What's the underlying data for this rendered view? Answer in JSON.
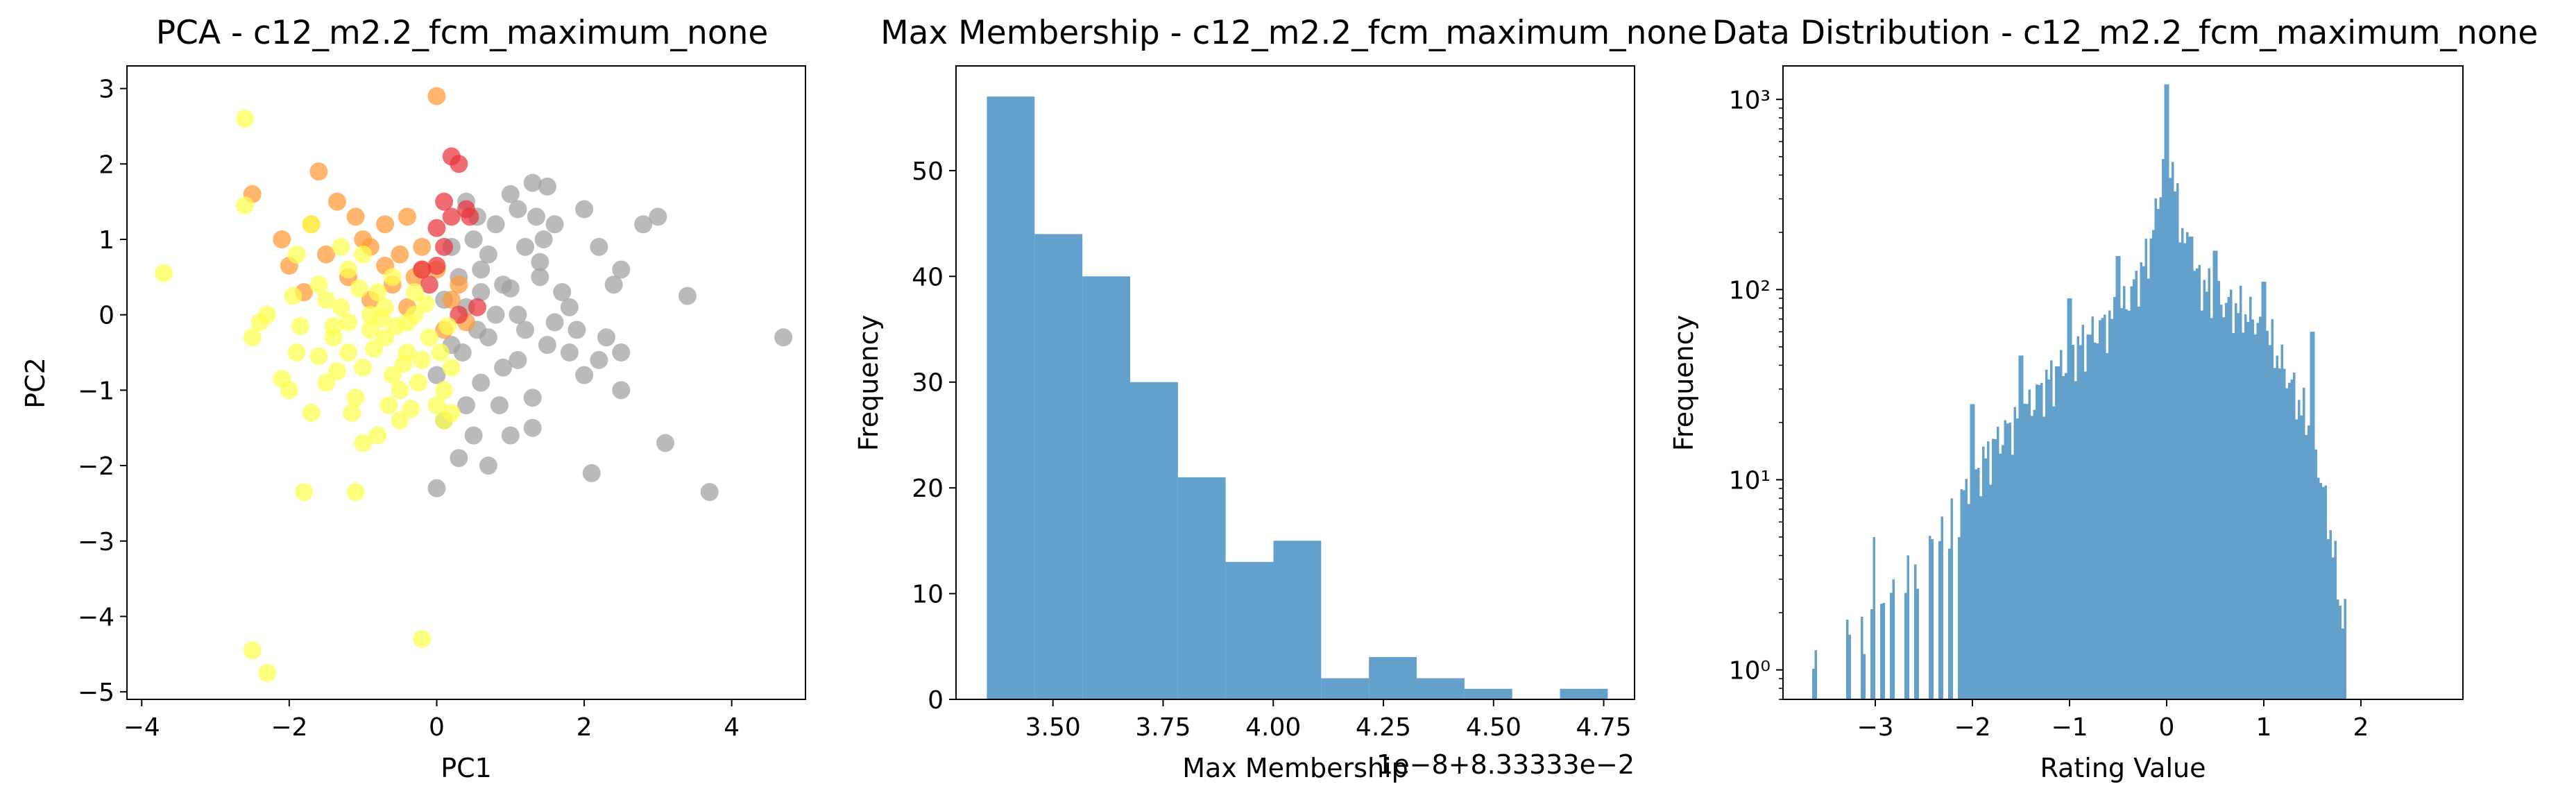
{
  "chart_data": [
    {
      "type": "scatter",
      "title": "PCA - c12_m2.2_fcm_maximum_none",
      "xlabel": "PC1",
      "ylabel": "PC2",
      "xlim": [
        -4.2,
        5.0
      ],
      "ylim": [
        -5.1,
        3.3
      ],
      "xticks": [
        -4,
        -2,
        0,
        2,
        4
      ],
      "yticks": [
        -5,
        -4,
        -3,
        -2,
        -1,
        0,
        1,
        2,
        3
      ],
      "xtick_labels": [
        "−4",
        "−2",
        "0",
        "2",
        "4"
      ],
      "ytick_labels": [
        "−5",
        "−4",
        "−3",
        "−2",
        "−1",
        "0",
        "1",
        "2",
        "3"
      ],
      "series": [
        {
          "color": "#a0a0a0",
          "points": [
            [
              0.4,
              1.5
            ],
            [
              0.55,
              1.3
            ],
            [
              0.6,
              0.6
            ],
            [
              0.7,
              0.8
            ],
            [
              0.8,
              1.2
            ],
            [
              0.9,
              0.4
            ],
            [
              1.0,
              1.6
            ],
            [
              1.1,
              1.4
            ],
            [
              1.2,
              0.9
            ],
            [
              1.3,
              1.75
            ],
            [
              1.35,
              1.3
            ],
            [
              1.4,
              0.5
            ],
            [
              1.45,
              1.0
            ],
            [
              1.5,
              1.7
            ],
            [
              1.6,
              1.2
            ],
            [
              1.7,
              0.3
            ],
            [
              1.8,
              0.1
            ],
            [
              1.9,
              -0.2
            ],
            [
              2.0,
              1.4
            ],
            [
              2.2,
              0.9
            ],
            [
              2.4,
              0.4
            ],
            [
              2.5,
              0.6
            ],
            [
              2.8,
              1.2
            ],
            [
              3.0,
              1.3
            ],
            [
              3.4,
              0.25
            ],
            [
              4.7,
              -0.3
            ],
            [
              0.0,
              -2.3
            ],
            [
              0.7,
              -2.0
            ],
            [
              1.0,
              -1.6
            ],
            [
              1.3,
              -1.1
            ],
            [
              1.5,
              -0.4
            ],
            [
              1.2,
              -0.2
            ],
            [
              0.9,
              -0.7
            ],
            [
              0.6,
              -0.9
            ],
            [
              0.4,
              -1.2
            ],
            [
              0.1,
              -1.4
            ],
            [
              0.3,
              -1.9
            ],
            [
              0.5,
              -1.6
            ],
            [
              1.3,
              -1.5
            ],
            [
              2.1,
              -2.1
            ],
            [
              3.1,
              -1.7
            ],
            [
              3.7,
              -2.35
            ],
            [
              2.5,
              -1.0
            ],
            [
              2.0,
              -0.8
            ],
            [
              2.3,
              -0.3
            ],
            [
              1.1,
              -0.6
            ],
            [
              0.8,
              0.0
            ],
            [
              0.6,
              0.3
            ],
            [
              0.3,
              0.5
            ],
            [
              0.2,
              -0.4
            ],
            [
              0.4,
              0.1
            ],
            [
              1.6,
              -0.1
            ],
            [
              1.0,
              0.35
            ],
            [
              0.7,
              -0.3
            ],
            [
              0.2,
              0.9
            ],
            [
              0.5,
              1.0
            ],
            [
              1.1,
              0.0
            ],
            [
              1.8,
              -0.5
            ],
            [
              2.5,
              -0.5
            ],
            [
              2.2,
              -0.6
            ],
            [
              0.0,
              -0.8
            ],
            [
              0.35,
              -0.5
            ],
            [
              0.85,
              -1.2
            ],
            [
              1.4,
              0.7
            ],
            [
              0.1,
              0.2
            ],
            [
              0.55,
              -0.2
            ]
          ]
        },
        {
          "color": "#ff9a33",
          "points": [
            [
              0.0,
              2.9
            ],
            [
              -2.5,
              1.6
            ],
            [
              -1.6,
              1.9
            ],
            [
              -1.35,
              1.5
            ],
            [
              -1.7,
              1.2
            ],
            [
              -1.1,
              1.3
            ],
            [
              -0.7,
              1.2
            ],
            [
              -0.4,
              1.3
            ],
            [
              -1.5,
              0.8
            ],
            [
              -0.9,
              0.9
            ],
            [
              -2.0,
              0.65
            ],
            [
              -1.8,
              0.3
            ],
            [
              -0.5,
              0.8
            ],
            [
              -0.2,
              0.9
            ],
            [
              -0.3,
              0.5
            ],
            [
              -0.6,
              0.4
            ],
            [
              0.0,
              0.6
            ],
            [
              -1.2,
              0.5
            ],
            [
              0.2,
              0.2
            ],
            [
              0.4,
              -0.1
            ],
            [
              0.1,
              -0.2
            ],
            [
              -0.9,
              0.2
            ],
            [
              -0.2,
              0.6
            ],
            [
              -1.0,
              1.0
            ],
            [
              -0.7,
              0.65
            ],
            [
              -0.4,
              0.1
            ],
            [
              0.3,
              0.4
            ],
            [
              -2.1,
              1.0
            ]
          ]
        },
        {
          "color": "#e8343c",
          "points": [
            [
              0.2,
              2.1
            ],
            [
              0.3,
              2.0
            ],
            [
              0.1,
              1.5
            ],
            [
              0.4,
              1.4
            ],
            [
              0.2,
              1.3
            ],
            [
              0.0,
              1.15
            ],
            [
              0.1,
              0.9
            ],
            [
              0.45,
              1.3
            ],
            [
              0.0,
              0.65
            ],
            [
              -0.1,
              0.4
            ],
            [
              0.55,
              0.1
            ],
            [
              0.3,
              0.0
            ],
            [
              -0.2,
              0.6
            ]
          ]
        },
        {
          "color": "#ffff4d",
          "points": [
            [
              -2.6,
              2.6
            ],
            [
              -2.6,
              1.45
            ],
            [
              -3.7,
              0.55
            ],
            [
              -2.5,
              -0.3
            ],
            [
              -2.4,
              -0.1
            ],
            [
              -2.1,
              -0.85
            ],
            [
              -2.0,
              -1.0
            ],
            [
              -1.9,
              -0.5
            ],
            [
              -1.7,
              -1.3
            ],
            [
              -1.5,
              -0.9
            ],
            [
              -1.4,
              -0.3
            ],
            [
              -1.3,
              0.1
            ],
            [
              -1.2,
              -0.5
            ],
            [
              -1.1,
              -1.1
            ],
            [
              -1.0,
              -0.7
            ],
            [
              -0.9,
              -0.2
            ],
            [
              -0.8,
              0.3
            ],
            [
              -0.7,
              -0.3
            ],
            [
              -0.6,
              -0.8
            ],
            [
              -0.5,
              -1.0
            ],
            [
              -0.4,
              -0.5
            ],
            [
              -0.3,
              0.0
            ],
            [
              -0.2,
              -0.6
            ],
            [
              -0.1,
              -0.3
            ],
            [
              0.0,
              -1.2
            ],
            [
              0.1,
              -1.0
            ],
            [
              0.2,
              -0.7
            ],
            [
              -1.0,
              -1.7
            ],
            [
              -0.8,
              -1.6
            ],
            [
              -0.5,
              -1.4
            ],
            [
              -1.1,
              -2.35
            ],
            [
              -1.8,
              -2.35
            ],
            [
              -2.5,
              -4.45
            ],
            [
              -2.3,
              -4.75
            ],
            [
              -0.2,
              -4.3
            ],
            [
              0.1,
              -1.4
            ],
            [
              0.2,
              -1.3
            ],
            [
              -1.9,
              0.8
            ],
            [
              -1.7,
              1.2
            ],
            [
              -1.6,
              0.4
            ],
            [
              -1.3,
              0.9
            ],
            [
              -1.2,
              0.6
            ],
            [
              -1.0,
              0.8
            ],
            [
              -0.9,
              0.0
            ],
            [
              -0.7,
              0.1
            ],
            [
              -0.6,
              0.5
            ],
            [
              -0.4,
              -0.1
            ],
            [
              -0.3,
              0.3
            ],
            [
              -1.5,
              0.2
            ],
            [
              -1.4,
              -0.15
            ],
            [
              -1.2,
              -0.1
            ],
            [
              -1.6,
              -0.55
            ],
            [
              -0.85,
              -0.45
            ],
            [
              -0.55,
              -0.15
            ],
            [
              -0.15,
              0.15
            ],
            [
              -0.25,
              -0.9
            ],
            [
              0.05,
              -0.5
            ],
            [
              -1.05,
              0.35
            ],
            [
              -2.3,
              0.0
            ],
            [
              -0.65,
              -1.2
            ],
            [
              -1.35,
              -0.75
            ],
            [
              -0.45,
              -0.65
            ],
            [
              -0.75,
              -0.05
            ],
            [
              0.15,
              -0.15
            ],
            [
              -1.85,
              -0.15
            ],
            [
              -1.95,
              0.25
            ],
            [
              -0.35,
              -1.25
            ],
            [
              -1.15,
              -1.3
            ]
          ]
        }
      ]
    },
    {
      "type": "bar",
      "title": "Max Membership - c12_m2.2_fcm_maximum_none",
      "xlabel": "Max Membership",
      "ylabel": "Frequency",
      "offset_label": "1e−8+8.33333e−2",
      "xlim": [
        3.28,
        4.82
      ],
      "ylim": [
        0,
        59.9
      ],
      "xticks": [
        3.5,
        3.75,
        4.0,
        4.25,
        4.5,
        4.75
      ],
      "yticks": [
        0,
        10,
        20,
        30,
        40,
        50
      ],
      "xtick_labels": [
        "3.50",
        "3.75",
        "4.00",
        "4.25",
        "4.50",
        "4.75"
      ],
      "ytick_labels": [
        "0",
        "10",
        "20",
        "30",
        "40",
        "50"
      ],
      "color": "#63a0cb",
      "bin_edges": [
        3.35,
        3.4584,
        3.5668,
        3.6752,
        3.7836,
        3.892,
        4.0004,
        4.1088,
        4.2172,
        4.3256,
        4.434,
        4.5424,
        4.6508,
        4.7592
      ],
      "values": [
        57,
        44,
        40,
        30,
        21,
        13,
        15,
        2,
        4,
        2,
        1,
        0,
        1
      ]
    },
    {
      "type": "bar",
      "title": "Data Distribution - c12_m2.2_fcm_maximum_none",
      "xlabel": "Rating Value",
      "ylabel": "Frequency",
      "yscale": "log",
      "xlim": [
        -3.95,
        3.05
      ],
      "ylim": [
        0.7,
        1500
      ],
      "xticks": [
        -3,
        -2,
        -1,
        0,
        1,
        2
      ],
      "xtick_labels": [
        "−3",
        "−2",
        "−1",
        "0",
        "1",
        "2"
      ],
      "yticks": [
        1,
        10,
        100,
        1000
      ],
      "ytick_labels": [
        "10⁰",
        "10¹",
        "10²",
        "10³"
      ],
      "color": "#63a0cb",
      "bin_range": [
        -3.65,
        2.61
      ],
      "bin_width": 0.025,
      "profile_anchors": [
        [
          -3.65,
          1
        ],
        [
          -3.3,
          1.5
        ],
        [
          -3.0,
          2
        ],
        [
          -2.75,
          3
        ],
        [
          -2.5,
          4
        ],
        [
          -2.25,
          6
        ],
        [
          -2.0,
          10
        ],
        [
          -1.75,
          16
        ],
        [
          -1.5,
          22
        ],
        [
          -1.25,
          32
        ],
        [
          -1.0,
          45
        ],
        [
          -0.75,
          60
        ],
        [
          -0.5,
          75
        ],
        [
          -0.35,
          100
        ],
        [
          -0.2,
          150
        ],
        [
          -0.1,
          260
        ],
        [
          -0.03,
          500
        ],
        [
          0.0,
          1200
        ],
        [
          0.03,
          600
        ],
        [
          0.1,
          300
        ],
        [
          0.25,
          130
        ],
        [
          0.5,
          90
        ],
        [
          0.75,
          80
        ],
        [
          1.0,
          65
        ],
        [
          1.25,
          35
        ],
        [
          1.5,
          18
        ],
        [
          1.7,
          5
        ],
        [
          1.8,
          2
        ],
        [
          2.0,
          1.5
        ],
        [
          2.25,
          1
        ],
        [
          2.61,
          1
        ]
      ],
      "spikes": [
        [
          0.0,
          1200
        ],
        [
          0.01,
          900
        ],
        [
          -0.01,
          700
        ],
        [
          0.02,
          550
        ],
        [
          -1.0,
          90
        ],
        [
          -0.5,
          150
        ],
        [
          0.5,
          160
        ],
        [
          1.0,
          110
        ],
        [
          -1.5,
          45
        ],
        [
          1.5,
          60
        ],
        [
          -2.0,
          25
        ],
        [
          -3.0,
          5
        ],
        [
          2.6,
          3
        ],
        [
          2.45,
          2
        ],
        [
          2.05,
          2
        ],
        [
          1.85,
          2
        ],
        [
          -2.65,
          4
        ],
        [
          0.25,
          190
        ]
      ],
      "gaps": [
        -3.58,
        -3.53,
        -3.47,
        -3.42,
        -3.37,
        -3.32,
        -3.22,
        -3.17,
        -3.07,
        -2.97,
        -2.87,
        -2.77,
        -2.72,
        -2.62,
        -2.52,
        -2.47,
        -2.37,
        -2.27,
        -2.17,
        1.87,
        1.92,
        1.97,
        2.02,
        2.07,
        2.12,
        2.17,
        2.22,
        2.27,
        2.32,
        2.37,
        2.42,
        2.47,
        2.52,
        2.57
      ]
    }
  ]
}
